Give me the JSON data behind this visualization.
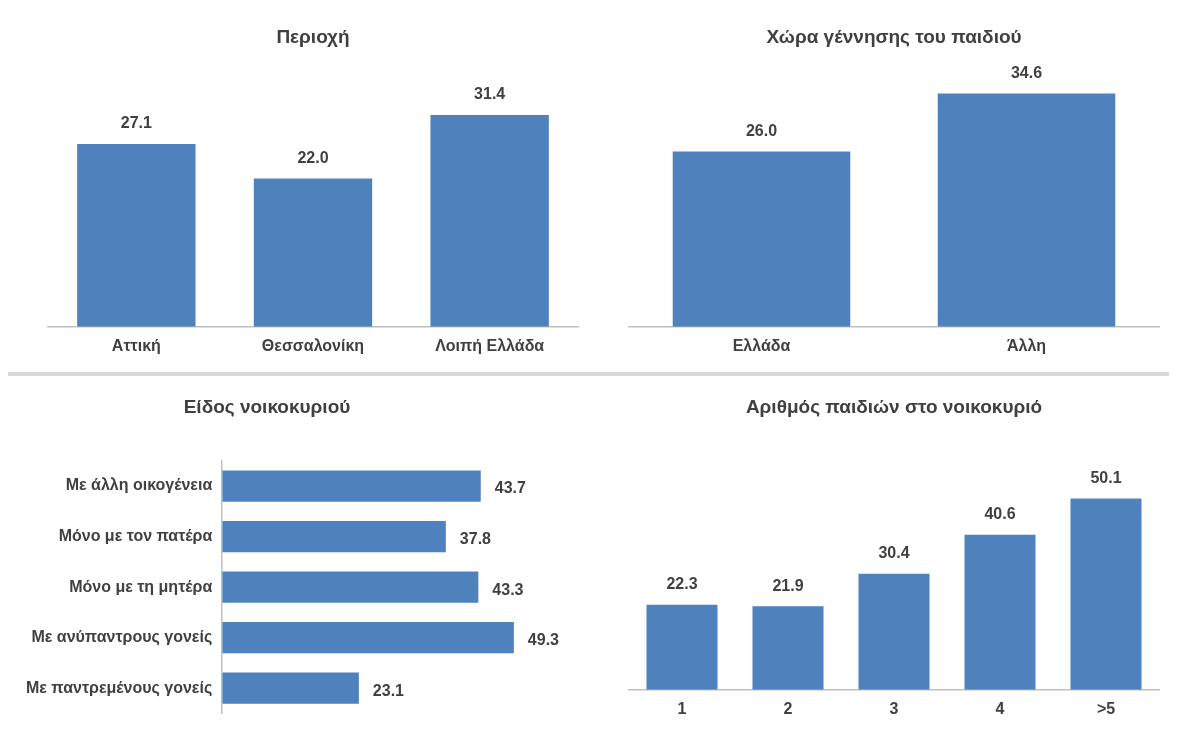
{
  "chart_data": [
    {
      "type": "bar",
      "title": "Περιοχή",
      "categories": [
        "Αττική",
        "Θεσσαλονίκη",
        "Λοιπή Ελλάδα"
      ],
      "values": [
        27.1,
        22.0,
        31.4
      ],
      "value_labels": [
        "27.1",
        "22.0",
        "31.4"
      ],
      "color": "#4f81bd",
      "grid": false,
      "legend": false,
      "tick_labels": "x"
    },
    {
      "type": "bar",
      "title": "Χώρα γέννησης του παιδιού",
      "categories": [
        "Ελλάδα",
        "Άλλη"
      ],
      "values": [
        26.0,
        34.6
      ],
      "value_labels": [
        "26.0",
        "34.6"
      ],
      "color": "#4f81bd",
      "grid": false,
      "legend": false,
      "tick_labels": "x"
    },
    {
      "type": "bar",
      "orientation": "horizontal",
      "title": "Είδος νοικοκυριού",
      "categories": [
        "Με άλλη οικογένεια",
        "Μόνο με τον πατέρα",
        "Μόνο με τη μητέρα",
        "Με ανύπαντρους γονείς",
        "Με παντρεμένους γονείς"
      ],
      "values": [
        43.7,
        37.8,
        43.3,
        49.3,
        23.1
      ],
      "color": "#4f81bd",
      "data_labels": true,
      "grid": false,
      "legend": false,
      "tick_labels": "y"
    },
    {
      "type": "bar",
      "title": "Αριθμός παιδιών στο νοικοκυριό",
      "categories": [
        "1",
        "2",
        "3",
        "4",
        ">5"
      ],
      "values": [
        22.3,
        21.9,
        30.4,
        40.6,
        50.1
      ],
      "color": "#4f81bd",
      "data_labels": true,
      "grid": false,
      "legend": false,
      "tick_labels": "x"
    }
  ]
}
